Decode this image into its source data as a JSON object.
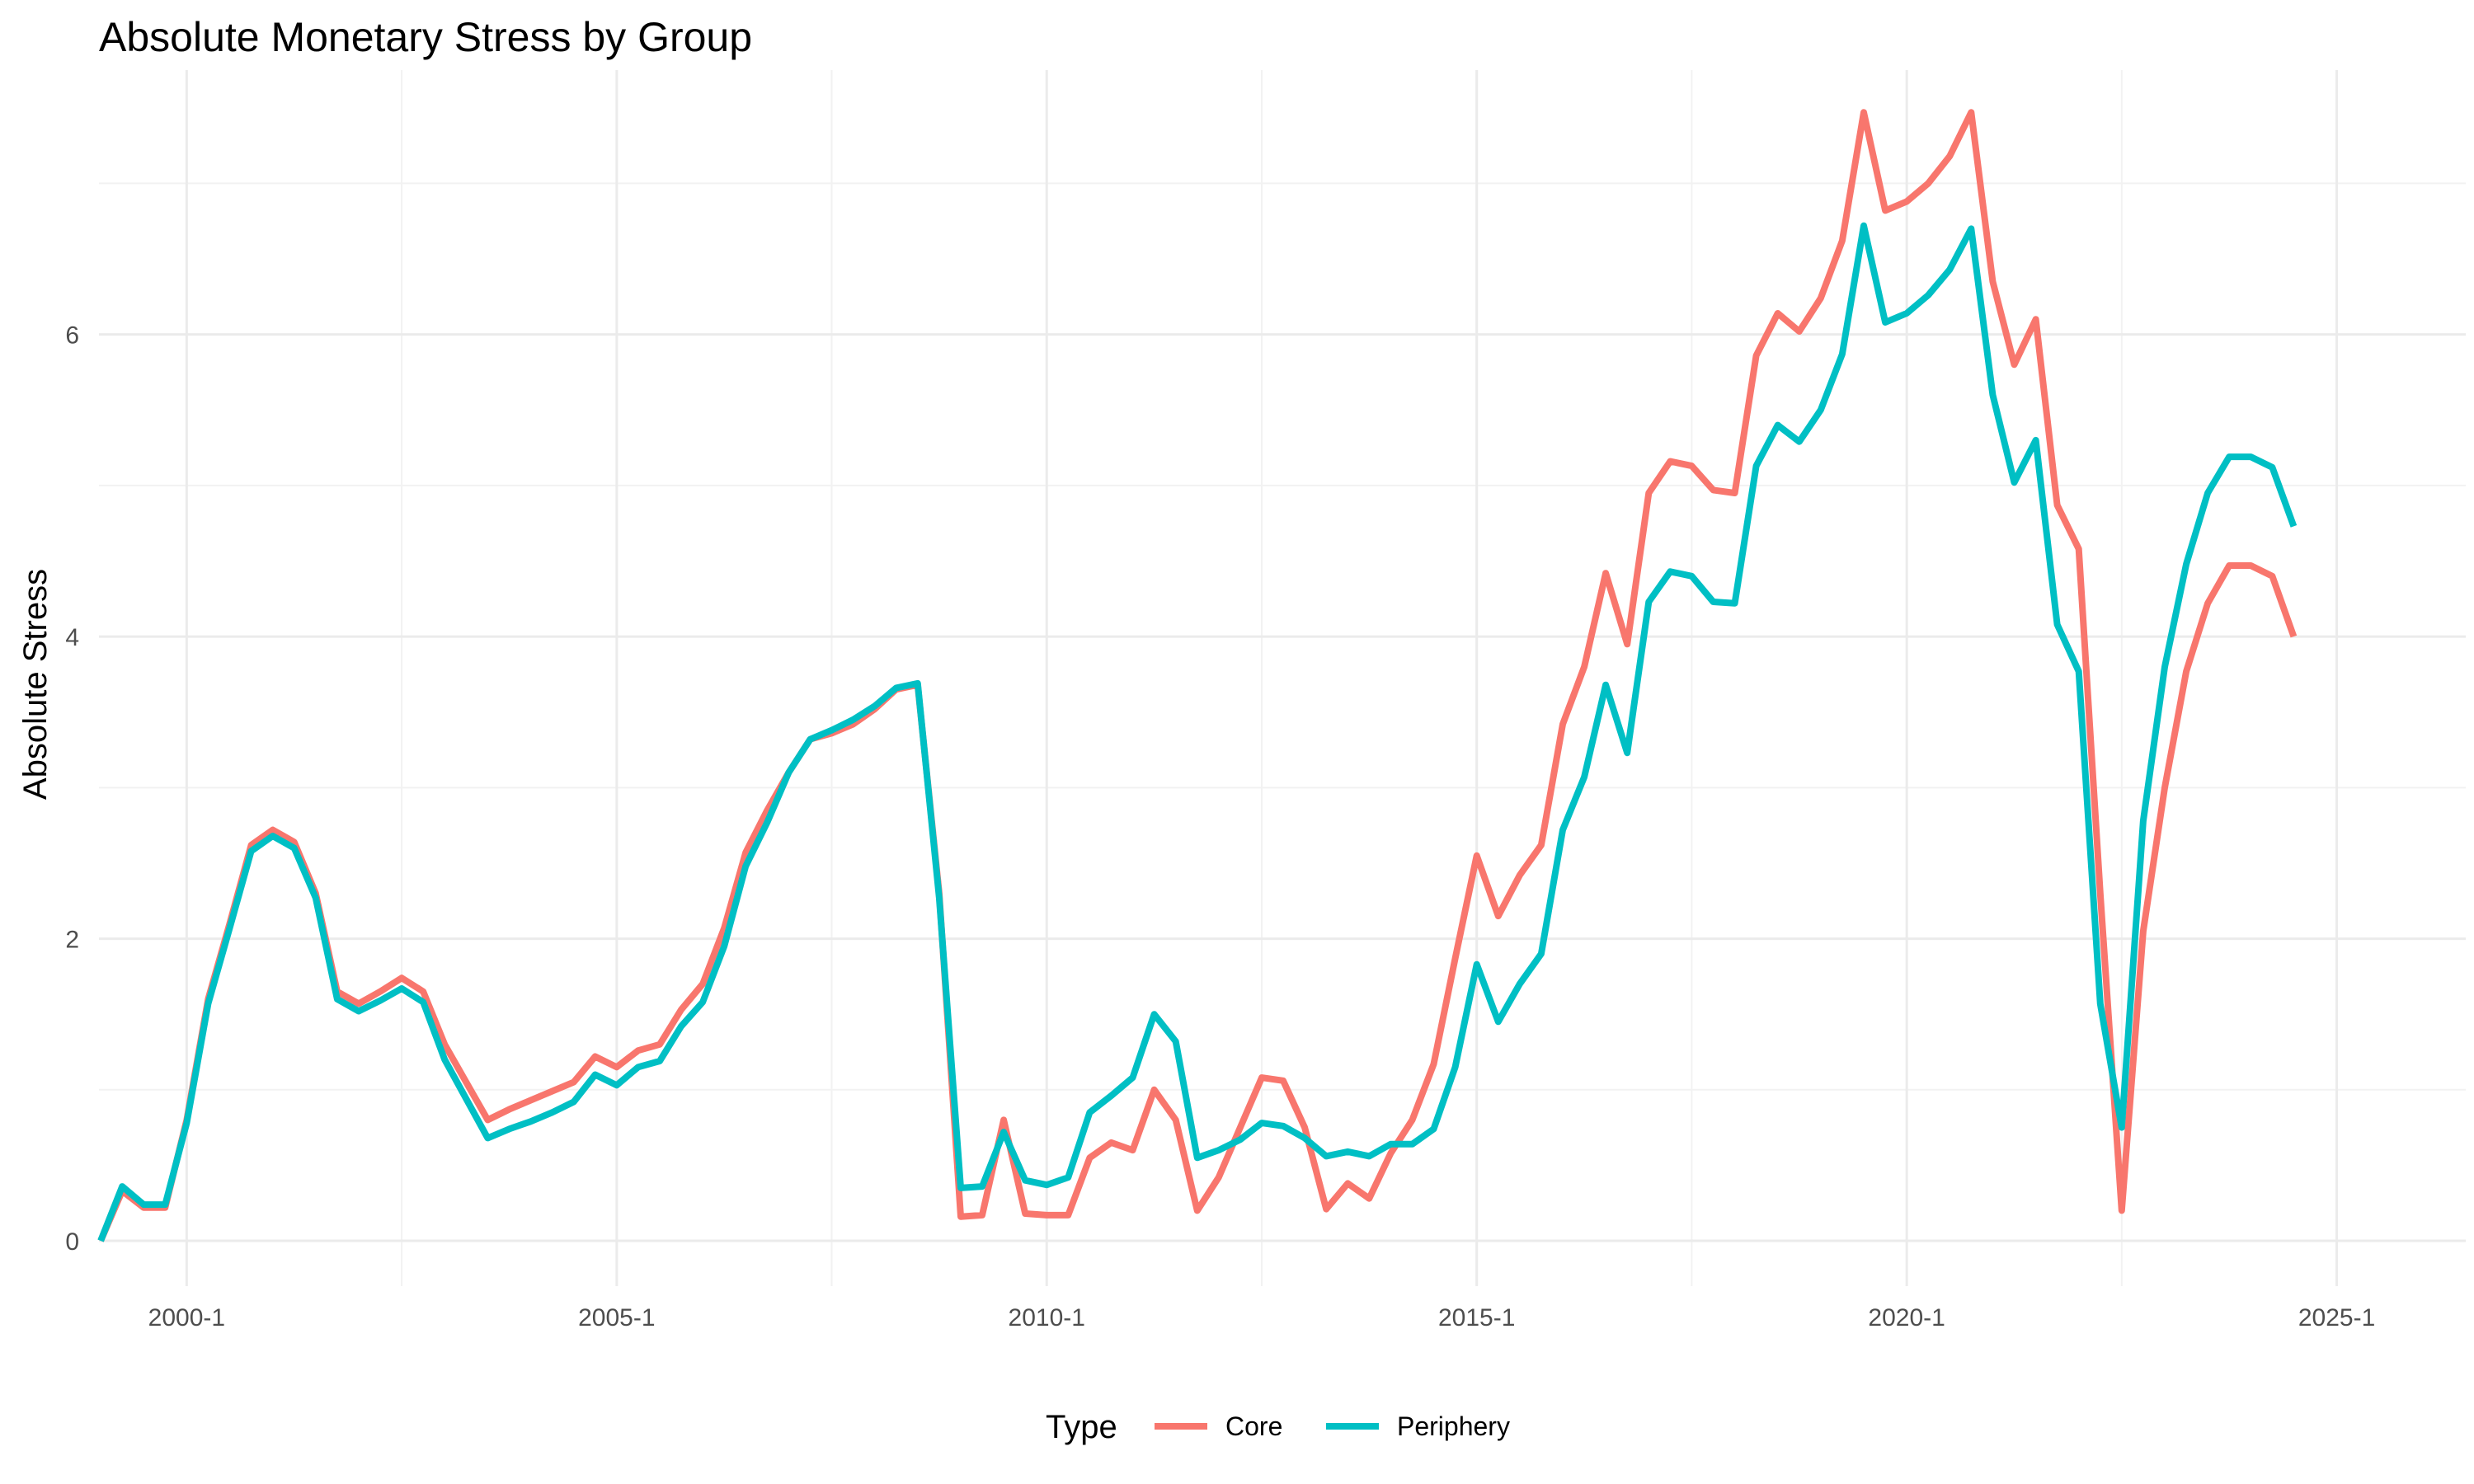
{
  "chart_data": {
    "type": "line",
    "title": "Absolute Monetary Stress by Group",
    "xlabel": "",
    "ylabel": "Absolute Stress",
    "x_tick_labels": [
      "2000-1",
      "2005-1",
      "2010-1",
      "2015-1",
      "2020-1",
      "2025-1"
    ],
    "x_tick_years": [
      2000,
      2005,
      2010,
      2015,
      2020,
      2025
    ],
    "y_ticks": [
      0,
      2,
      4,
      6
    ],
    "ylim": [
      -0.3,
      7.75
    ],
    "xlim": [
      1998.98,
      2026.5
    ],
    "grid": true,
    "legend": {
      "title": "Type",
      "position": "bottom",
      "entries": [
        {
          "label": "Core",
          "color": "#F8766D"
        },
        {
          "label": "Periphery",
          "color": "#00BFC4"
        }
      ]
    },
    "series": [
      {
        "name": "Core",
        "color": "#F8766D",
        "points": [
          [
            1999.0,
            0.0
          ],
          [
            1999.25,
            0.33
          ],
          [
            1999.5,
            0.22
          ],
          [
            1999.75,
            0.22
          ],
          [
            2000.0,
            0.8
          ],
          [
            2000.25,
            1.6
          ],
          [
            2000.5,
            2.1
          ],
          [
            2000.75,
            2.62
          ],
          [
            2001.0,
            2.72
          ],
          [
            2001.25,
            2.64
          ],
          [
            2001.5,
            2.3
          ],
          [
            2001.75,
            1.65
          ],
          [
            2002.0,
            1.57
          ],
          [
            2002.25,
            1.65
          ],
          [
            2002.5,
            1.74
          ],
          [
            2002.75,
            1.65
          ],
          [
            2003.0,
            1.3
          ],
          [
            2003.25,
            1.05
          ],
          [
            2003.5,
            0.8
          ],
          [
            2003.75,
            0.87
          ],
          [
            2004.0,
            0.93
          ],
          [
            2004.25,
            0.99
          ],
          [
            2004.5,
            1.05
          ],
          [
            2004.75,
            1.22
          ],
          [
            2005.0,
            1.15
          ],
          [
            2005.25,
            1.26
          ],
          [
            2005.5,
            1.3
          ],
          [
            2005.75,
            1.53
          ],
          [
            2006.0,
            1.7
          ],
          [
            2006.25,
            2.07
          ],
          [
            2006.5,
            2.57
          ],
          [
            2006.75,
            2.85
          ],
          [
            2007.0,
            3.1
          ],
          [
            2007.25,
            3.32
          ],
          [
            2007.5,
            3.36
          ],
          [
            2007.75,
            3.42
          ],
          [
            2008.0,
            3.52
          ],
          [
            2008.25,
            3.65
          ],
          [
            2008.5,
            3.68
          ],
          [
            2008.75,
            2.3
          ],
          [
            2009.0,
            0.16
          ],
          [
            2009.25,
            0.17
          ],
          [
            2009.5,
            0.8
          ],
          [
            2009.75,
            0.18
          ],
          [
            2010.0,
            0.17
          ],
          [
            2010.25,
            0.17
          ],
          [
            2010.5,
            0.55
          ],
          [
            2010.75,
            0.65
          ],
          [
            2011.0,
            0.6
          ],
          [
            2011.25,
            1.0
          ],
          [
            2011.5,
            0.8
          ],
          [
            2011.75,
            0.2
          ],
          [
            2012.0,
            0.42
          ],
          [
            2012.25,
            0.75
          ],
          [
            2012.5,
            1.08
          ],
          [
            2012.75,
            1.06
          ],
          [
            2013.0,
            0.75
          ],
          [
            2013.25,
            0.21
          ],
          [
            2013.5,
            0.38
          ],
          [
            2013.75,
            0.28
          ],
          [
            2014.0,
            0.58
          ],
          [
            2014.25,
            0.8
          ],
          [
            2014.5,
            1.17
          ],
          [
            2014.75,
            1.87
          ],
          [
            2015.0,
            2.55
          ],
          [
            2015.25,
            2.15
          ],
          [
            2015.5,
            2.42
          ],
          [
            2015.75,
            2.62
          ],
          [
            2016.0,
            3.42
          ],
          [
            2016.25,
            3.8
          ],
          [
            2016.5,
            4.42
          ],
          [
            2016.75,
            3.95
          ],
          [
            2017.0,
            4.95
          ],
          [
            2017.25,
            5.16
          ],
          [
            2017.5,
            5.13
          ],
          [
            2017.75,
            4.97
          ],
          [
            2018.0,
            4.95
          ],
          [
            2018.25,
            5.86
          ],
          [
            2018.5,
            6.14
          ],
          [
            2018.75,
            6.02
          ],
          [
            2019.0,
            6.24
          ],
          [
            2019.25,
            6.62
          ],
          [
            2019.5,
            7.47
          ],
          [
            2019.75,
            6.82
          ],
          [
            2020.0,
            6.88
          ],
          [
            2020.25,
            7.0
          ],
          [
            2020.5,
            7.18
          ],
          [
            2020.75,
            7.47
          ],
          [
            2021.0,
            6.35
          ],
          [
            2021.25,
            5.8
          ],
          [
            2021.5,
            6.1
          ],
          [
            2021.75,
            4.87
          ],
          [
            2022.0,
            4.58
          ],
          [
            2022.25,
            2.3
          ],
          [
            2022.5,
            0.2
          ],
          [
            2022.75,
            2.05
          ],
          [
            2023.0,
            3.0
          ],
          [
            2023.25,
            3.77
          ],
          [
            2023.5,
            4.22
          ],
          [
            2023.75,
            4.47
          ],
          [
            2024.0,
            4.47
          ],
          [
            2024.25,
            4.4
          ],
          [
            2024.5,
            4.0
          ]
        ]
      },
      {
        "name": "Periphery",
        "color": "#00BFC4",
        "points": [
          [
            1999.0,
            0.0
          ],
          [
            1999.25,
            0.36
          ],
          [
            1999.5,
            0.24
          ],
          [
            1999.75,
            0.24
          ],
          [
            2000.0,
            0.78
          ],
          [
            2000.25,
            1.57
          ],
          [
            2000.5,
            2.07
          ],
          [
            2000.75,
            2.58
          ],
          [
            2001.0,
            2.68
          ],
          [
            2001.25,
            2.6
          ],
          [
            2001.5,
            2.27
          ],
          [
            2001.75,
            1.6
          ],
          [
            2002.0,
            1.52
          ],
          [
            2002.25,
            1.59
          ],
          [
            2002.5,
            1.67
          ],
          [
            2002.75,
            1.58
          ],
          [
            2003.0,
            1.2
          ],
          [
            2003.25,
            0.94
          ],
          [
            2003.5,
            0.68
          ],
          [
            2003.75,
            0.74
          ],
          [
            2004.0,
            0.79
          ],
          [
            2004.25,
            0.85
          ],
          [
            2004.5,
            0.92
          ],
          [
            2004.75,
            1.1
          ],
          [
            2005.0,
            1.03
          ],
          [
            2005.25,
            1.15
          ],
          [
            2005.5,
            1.19
          ],
          [
            2005.75,
            1.42
          ],
          [
            2006.0,
            1.58
          ],
          [
            2006.25,
            1.95
          ],
          [
            2006.5,
            2.48
          ],
          [
            2006.75,
            2.77
          ],
          [
            2007.0,
            3.1
          ],
          [
            2007.25,
            3.32
          ],
          [
            2007.5,
            3.38
          ],
          [
            2007.75,
            3.45
          ],
          [
            2008.0,
            3.54
          ],
          [
            2008.25,
            3.66
          ],
          [
            2008.5,
            3.69
          ],
          [
            2008.75,
            2.27
          ],
          [
            2009.0,
            0.35
          ],
          [
            2009.25,
            0.36
          ],
          [
            2009.5,
            0.72
          ],
          [
            2009.75,
            0.4
          ],
          [
            2010.0,
            0.37
          ],
          [
            2010.25,
            0.42
          ],
          [
            2010.5,
            0.85
          ],
          [
            2010.75,
            0.96
          ],
          [
            2011.0,
            1.08
          ],
          [
            2011.25,
            1.5
          ],
          [
            2011.5,
            1.32
          ],
          [
            2011.75,
            0.55
          ],
          [
            2012.0,
            0.6
          ],
          [
            2012.25,
            0.67
          ],
          [
            2012.5,
            0.78
          ],
          [
            2012.75,
            0.76
          ],
          [
            2013.0,
            0.68
          ],
          [
            2013.25,
            0.56
          ],
          [
            2013.5,
            0.59
          ],
          [
            2013.75,
            0.56
          ],
          [
            2014.0,
            0.64
          ],
          [
            2014.25,
            0.64
          ],
          [
            2014.5,
            0.74
          ],
          [
            2014.75,
            1.15
          ],
          [
            2015.0,
            1.83
          ],
          [
            2015.25,
            1.45
          ],
          [
            2015.5,
            1.7
          ],
          [
            2015.75,
            1.9
          ],
          [
            2016.0,
            2.72
          ],
          [
            2016.25,
            3.07
          ],
          [
            2016.5,
            3.68
          ],
          [
            2016.75,
            3.23
          ],
          [
            2017.0,
            4.23
          ],
          [
            2017.25,
            4.43
          ],
          [
            2017.5,
            4.4
          ],
          [
            2017.75,
            4.23
          ],
          [
            2018.0,
            4.22
          ],
          [
            2018.25,
            5.13
          ],
          [
            2018.5,
            5.4
          ],
          [
            2018.75,
            5.29
          ],
          [
            2019.0,
            5.5
          ],
          [
            2019.25,
            5.87
          ],
          [
            2019.5,
            6.72
          ],
          [
            2019.75,
            6.08
          ],
          [
            2020.0,
            6.14
          ],
          [
            2020.25,
            6.26
          ],
          [
            2020.5,
            6.43
          ],
          [
            2020.75,
            6.7
          ],
          [
            2021.0,
            5.6
          ],
          [
            2021.25,
            5.02
          ],
          [
            2021.5,
            5.3
          ],
          [
            2021.75,
            4.08
          ],
          [
            2022.0,
            3.77
          ],
          [
            2022.25,
            1.57
          ],
          [
            2022.5,
            0.75
          ],
          [
            2022.75,
            2.78
          ],
          [
            2023.0,
            3.8
          ],
          [
            2023.25,
            4.48
          ],
          [
            2023.5,
            4.95
          ],
          [
            2023.75,
            5.19
          ],
          [
            2024.0,
            5.19
          ],
          [
            2024.25,
            5.12
          ],
          [
            2024.5,
            4.73
          ]
        ]
      }
    ]
  }
}
